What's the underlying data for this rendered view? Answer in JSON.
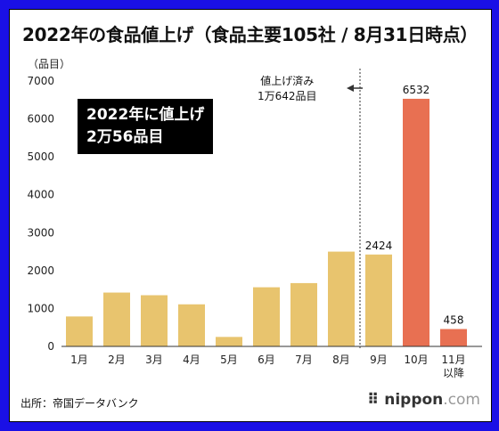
{
  "page": {
    "title": "2022年の食品値上げ（食品主要105社 / 8月31日時点）",
    "unit_label": "（品目）",
    "summary_line1": "2022年に値上げ",
    "summary_line2": "2万56品目",
    "annotation_line1": "値上げ済み",
    "annotation_line2": "1万642品目",
    "source": "出所：帝国データバンク",
    "logo_name": "nippon",
    "logo_suffix": "com"
  },
  "colors": {
    "background": "#1a10e6",
    "bar_done": "#e8c46e",
    "bar_future": "#e87052"
  },
  "chart_data": {
    "type": "bar",
    "categories": [
      "1月",
      "2月",
      "3月",
      "4月",
      "5月",
      "6月",
      "7月",
      "8月",
      "9月",
      "10月",
      "11月以降"
    ],
    "category_lines": [
      [
        "1月"
      ],
      [
        "2月"
      ],
      [
        "3月"
      ],
      [
        "4月"
      ],
      [
        "5月"
      ],
      [
        "6月"
      ],
      [
        "7月"
      ],
      [
        "8月"
      ],
      [
        "9月"
      ],
      [
        "10月"
      ],
      [
        "11月",
        "以降"
      ]
    ],
    "values": [
      790,
      1420,
      1350,
      1110,
      250,
      1560,
      1670,
      2500,
      2424,
      6532,
      458
    ],
    "data_labels": [
      null,
      null,
      null,
      null,
      null,
      null,
      null,
      null,
      "2424",
      "6532",
      "458"
    ],
    "colors": [
      "#e8c46e",
      "#e8c46e",
      "#e8c46e",
      "#e8c46e",
      "#e8c46e",
      "#e8c46e",
      "#e8c46e",
      "#e8c46e",
      "#e8c46e",
      "#e87052",
      "#e87052"
    ],
    "yticks": [
      0,
      1000,
      2000,
      3000,
      4000,
      5000,
      6000,
      7000
    ],
    "ylim": [
      0,
      7000
    ],
    "grid": false,
    "divider_after_category": "8月",
    "xlabel": "",
    "ylabel": "（品目）"
  }
}
